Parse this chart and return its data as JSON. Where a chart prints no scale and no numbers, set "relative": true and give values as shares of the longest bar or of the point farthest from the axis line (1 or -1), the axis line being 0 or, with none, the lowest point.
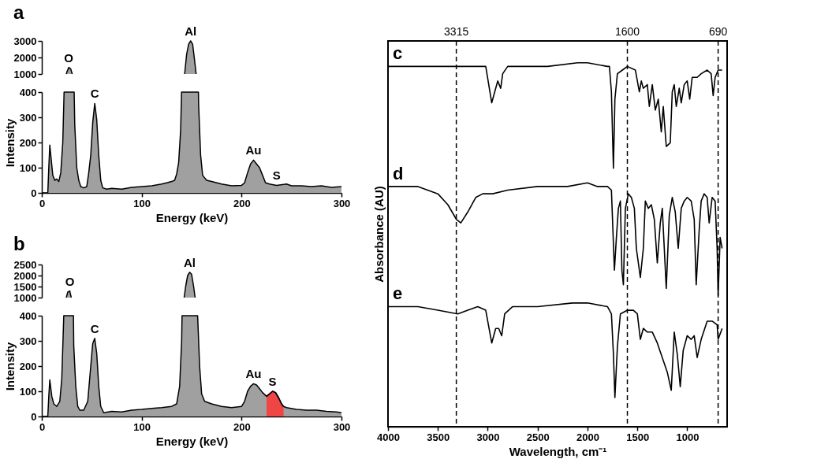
{
  "chart_data": [
    {
      "type": "area",
      "title": "a",
      "tick_labels": "y",
      "xlim": [
        0,
        300
      ],
      "ylim": [
        1000,
        3000
      ],
      "yticks": [
        1000,
        2000,
        3000
      ],
      "series": [
        {
          "color": "#a0a0a0",
          "x": [
            24.5,
            25,
            27,
            29,
            30.5
          ],
          "values": [
            1000,
            1100,
            1400,
            1300,
            1000
          ]
        },
        {
          "color": "#a0a0a0",
          "x": [
            143,
            145,
            147,
            149,
            151,
            153,
            154.5
          ],
          "values": [
            1000,
            2200,
            2800,
            3000,
            2800,
            1800,
            1000
          ]
        }
      ],
      "annotations": [
        {
          "text": "O",
          "x": 27,
          "y": 1400
        },
        {
          "text": "Al",
          "x": 149,
          "y": 3000
        }
      ]
    },
    {
      "type": "area",
      "xlabel": "Energy (keV)",
      "ylabel": "Intensity",
      "xlim": [
        0,
        300
      ],
      "xticks": [
        0,
        100,
        200,
        300
      ],
      "ylim": [
        0,
        400
      ],
      "yticks": [
        0,
        100,
        200,
        300,
        400
      ],
      "x": [
        0,
        6,
        7,
        8,
        9,
        11,
        13,
        15,
        17,
        19,
        21,
        22.3,
        32.4,
        33,
        35,
        37,
        39,
        42,
        45,
        47,
        49,
        51,
        53,
        55,
        57,
        59,
        61,
        65,
        70,
        80,
        90,
        100,
        110,
        120,
        125,
        130,
        133,
        135,
        137,
        139,
        139.9,
        156.8,
        157,
        159,
        161,
        165,
        170,
        180,
        190,
        200,
        203,
        206,
        209,
        212,
        215,
        218,
        221,
        224,
        228,
        235,
        245,
        250,
        260,
        270,
        280,
        290,
        300
      ],
      "series": [
        {
          "color": "#a0a0a0",
          "values": [
            0,
            0,
            100,
            190,
            150,
            70,
            50,
            55,
            45,
            80,
            200,
            400,
            400,
            270,
            100,
            50,
            25,
            20,
            25,
            80,
            150,
            280,
            355,
            290,
            150,
            50,
            20,
            15,
            18,
            15,
            22,
            25,
            28,
            35,
            40,
            45,
            50,
            75,
            120,
            250,
            400,
            400,
            350,
            150,
            70,
            50,
            45,
            35,
            28,
            30,
            40,
            80,
            115,
            130,
            115,
            100,
            70,
            40,
            35,
            30,
            35,
            28,
            28,
            25,
            28,
            22,
            25
          ]
        }
      ],
      "annotations": [
        {
          "text": "C",
          "x": 53,
          "y": 355
        },
        {
          "text": "Au",
          "x": 212,
          "y": 130
        },
        {
          "text": "S",
          "x": 235,
          "y": 30
        }
      ]
    },
    {
      "type": "area",
      "title": "b",
      "tick_labels": "y",
      "xlim": [
        0,
        300
      ],
      "ylim": [
        1000,
        2500
      ],
      "yticks": [
        1000,
        1500,
        2000,
        2500
      ],
      "series": [
        {
          "color": "#a0a0a0",
          "x": [
            24.5,
            26,
            28,
            29.5
          ],
          "values": [
            1000,
            1250,
            1300,
            1000
          ]
        },
        {
          "color": "#a0a0a0",
          "x": [
            142.5,
            144,
            146,
            148,
            150,
            152,
            153.5
          ],
          "values": [
            1000,
            1500,
            2000,
            2150,
            2050,
            1500,
            1000
          ]
        }
      ],
      "annotations": [
        {
          "text": "O",
          "x": 28,
          "y": 1300
        },
        {
          "text": "Al",
          "x": 148,
          "y": 2150
        }
      ]
    },
    {
      "type": "area",
      "xlabel": "Energy (keV)",
      "ylabel": "Intensity",
      "xlim": [
        0,
        300
      ],
      "xticks": [
        0,
        100,
        200,
        300
      ],
      "ylim": [
        0,
        400
      ],
      "yticks": [
        0,
        100,
        200,
        300,
        400
      ],
      "x": [
        0,
        6,
        7,
        8,
        10,
        12,
        15,
        18,
        20,
        22,
        31.7,
        32,
        34,
        36,
        38,
        42,
        46,
        49,
        51,
        53,
        55,
        57,
        59,
        62,
        70,
        80,
        90,
        100,
        110,
        120,
        130,
        135,
        138,
        140,
        140.4,
        156,
        158,
        160,
        163,
        170,
        180,
        190,
        200,
        203,
        206,
        209,
        212,
        215,
        218,
        221,
        225,
        228,
        231,
        234,
        237,
        240,
        242,
        245,
        255,
        265,
        275,
        285,
        295,
        300
      ],
      "series": [
        {
          "color": "#a0a0a0",
          "values": [
            0,
            0,
            80,
            145,
            80,
            50,
            40,
            60,
            150,
            400,
            400,
            280,
            120,
            40,
            25,
            25,
            60,
            200,
            290,
            310,
            250,
            120,
            40,
            15,
            20,
            18,
            25,
            28,
            32,
            35,
            40,
            50,
            120,
            300,
            400,
            400,
            200,
            90,
            60,
            50,
            40,
            35,
            40,
            60,
            100,
            120,
            130,
            125,
            110,
            95,
            80,
            90,
            100,
            95,
            75,
            50,
            40,
            35,
            28,
            25,
            25,
            20,
            18,
            15
          ]
        },
        {
          "color": "#f04545",
          "x": [
            225,
            228,
            231,
            234,
            237,
            240,
            242
          ],
          "values": [
            80,
            90,
            100,
            95,
            75,
            50,
            40
          ]
        }
      ],
      "annotations": [
        {
          "text": "C",
          "x": 53,
          "y": 310
        },
        {
          "text": "Au",
          "x": 212,
          "y": 130
        },
        {
          "text": "S",
          "x": 231,
          "y": 100
        }
      ]
    },
    {
      "type": "line",
      "relative": true,
      "xlabel": "Wavelength, cm⁻¹",
      "ylabel": "Absorbance (AU)",
      "xlim": [
        4000,
        600
      ],
      "xticks": [
        4000,
        3500,
        3000,
        2500,
        2000,
        1500,
        1000
      ],
      "series": [
        {
          "name": "c",
          "color": "#000000",
          "x": [
            4000,
            3600,
            3100,
            3020,
            2960,
            2930,
            2900,
            2870,
            2850,
            2800,
            2400,
            2100,
            2000,
            1800,
            1780,
            1760,
            1740,
            1725,
            1700,
            1650,
            1600,
            1520,
            1480,
            1460,
            1440,
            1400,
            1380,
            1350,
            1320,
            1290,
            1260,
            1240,
            1210,
            1170,
            1150,
            1130,
            1110,
            1080,
            1060,
            1030,
            1000,
            975,
            950,
            900,
            860,
            800,
            760,
            740,
            720,
            690,
            650
          ],
          "values": [
            0.99,
            0.99,
            0.99,
            0.99,
            0.89,
            0.92,
            0.95,
            0.93,
            0.97,
            0.99,
            0.99,
            1.0,
            1.0,
            0.99,
            0.99,
            0.92,
            0.71,
            0.9,
            0.97,
            0.98,
            0.99,
            0.98,
            0.92,
            0.95,
            0.93,
            0.94,
            0.88,
            0.94,
            0.87,
            0.9,
            0.81,
            0.88,
            0.77,
            0.78,
            0.92,
            0.94,
            0.88,
            0.93,
            0.89,
            0.94,
            0.95,
            0.9,
            0.96,
            0.96,
            0.97,
            0.98,
            0.97,
            0.91,
            0.96,
            0.98,
            0.98
          ]
        },
        {
          "name": "d",
          "color": "#000000",
          "x": [
            4000,
            3700,
            3500,
            3400,
            3315,
            3270,
            3200,
            3120,
            3050,
            2950,
            2800,
            2500,
            2200,
            2000,
            1900,
            1800,
            1760,
            1730,
            1710,
            1690,
            1670,
            1655,
            1640,
            1620,
            1590,
            1560,
            1530,
            1510,
            1470,
            1440,
            1420,
            1390,
            1360,
            1330,
            1300,
            1270,
            1250,
            1210,
            1180,
            1150,
            1120,
            1090,
            1060,
            1030,
            1000,
            960,
            930,
            910,
            880,
            860,
            830,
            800,
            780,
            750,
            720,
            700,
            690,
            670,
            650
          ],
          "values": [
            0.66,
            0.66,
            0.64,
            0.61,
            0.57,
            0.56,
            0.59,
            0.63,
            0.64,
            0.64,
            0.65,
            0.66,
            0.66,
            0.67,
            0.66,
            0.66,
            0.65,
            0.43,
            0.52,
            0.6,
            0.62,
            0.43,
            0.39,
            0.6,
            0.64,
            0.63,
            0.6,
            0.49,
            0.41,
            0.49,
            0.62,
            0.6,
            0.61,
            0.57,
            0.45,
            0.56,
            0.6,
            0.38,
            0.58,
            0.63,
            0.59,
            0.49,
            0.6,
            0.62,
            0.63,
            0.62,
            0.57,
            0.39,
            0.54,
            0.62,
            0.64,
            0.63,
            0.56,
            0.63,
            0.62,
            0.49,
            0.36,
            0.52,
            0.49
          ]
        },
        {
          "name": "e",
          "color": "#000000",
          "x": [
            4000,
            3700,
            3500,
            3300,
            3200,
            3100,
            3020,
            2960,
            2920,
            2890,
            2860,
            2830,
            2750,
            2500,
            2150,
            2000,
            1800,
            1760,
            1740,
            1725,
            1700,
            1670,
            1600,
            1540,
            1500,
            1470,
            1440,
            1400,
            1350,
            1300,
            1250,
            1200,
            1160,
            1130,
            1100,
            1070,
            1040,
            1000,
            960,
            930,
            900,
            860,
            800,
            750,
            700,
            690,
            650
          ],
          "values": [
            0.33,
            0.33,
            0.32,
            0.31,
            0.32,
            0.33,
            0.32,
            0.23,
            0.27,
            0.27,
            0.25,
            0.31,
            0.33,
            0.33,
            0.34,
            0.34,
            0.33,
            0.31,
            0.2,
            0.08,
            0.22,
            0.31,
            0.32,
            0.32,
            0.31,
            0.24,
            0.27,
            0.26,
            0.26,
            0.23,
            0.19,
            0.15,
            0.1,
            0.26,
            0.2,
            0.11,
            0.21,
            0.25,
            0.24,
            0.25,
            0.19,
            0.24,
            0.29,
            0.29,
            0.28,
            0.24,
            0.27
          ]
        }
      ],
      "ref_lines": [
        {
          "axis": "x",
          "value": 3315,
          "label": "3315",
          "line_style": "dashed"
        },
        {
          "axis": "x",
          "value": 1600,
          "label": "1600",
          "line_style": "dashed"
        },
        {
          "axis": "x",
          "value": 690,
          "label": "690",
          "line_style": "dashed"
        }
      ]
    }
  ]
}
